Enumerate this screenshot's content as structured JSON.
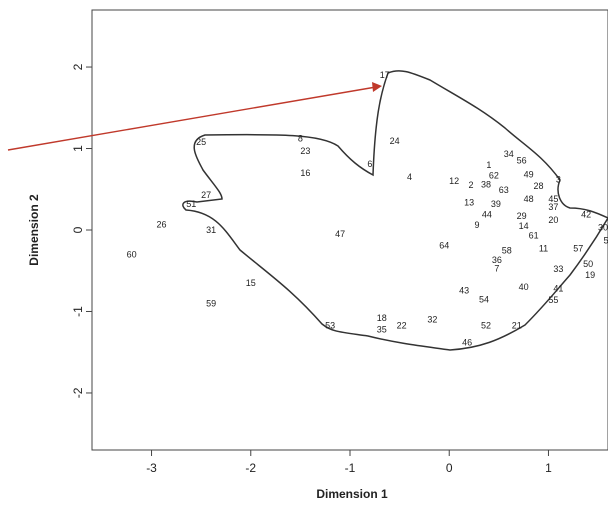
{
  "chart_data": {
    "type": "scatter",
    "xlabel": "Dimension 1",
    "ylabel": "Dimension 2",
    "xlim": [
      -3.6,
      1.6
    ],
    "ylim": [
      -2.7,
      2.7
    ],
    "xticks": [
      -3,
      -2,
      -1,
      0,
      1
    ],
    "xtick_labels": [
      "-3",
      "-2",
      "-1",
      "0",
      "1"
    ],
    "yticks": [
      -2,
      -1,
      0,
      1,
      2
    ],
    "ytick_labels": [
      "-2",
      "-1",
      "0",
      "1",
      "2"
    ],
    "grid": false,
    "points": [
      {
        "label": "17",
        "x": -0.65,
        "y": 1.9
      },
      {
        "label": "8",
        "x": -1.5,
        "y": 1.12
      },
      {
        "label": "25",
        "x": -2.5,
        "y": 1.08
      },
      {
        "label": "23",
        "x": -1.45,
        "y": 0.97
      },
      {
        "label": "24",
        "x": -0.55,
        "y": 1.09
      },
      {
        "label": "16",
        "x": -1.45,
        "y": 0.7
      },
      {
        "label": "6",
        "x": -0.8,
        "y": 0.81
      },
      {
        "label": "4",
        "x": -0.4,
        "y": 0.65
      },
      {
        "label": "34",
        "x": 0.6,
        "y": 0.93
      },
      {
        "label": "56",
        "x": 0.73,
        "y": 0.85
      },
      {
        "label": "1",
        "x": 0.4,
        "y": 0.8
      },
      {
        "label": "62",
        "x": 0.45,
        "y": 0.67
      },
      {
        "label": "49",
        "x": 0.8,
        "y": 0.68
      },
      {
        "label": "3",
        "x": 1.1,
        "y": 0.62
      },
      {
        "label": "12",
        "x": 0.05,
        "y": 0.6
      },
      {
        "label": "2",
        "x": 0.22,
        "y": 0.55
      },
      {
        "label": "38",
        "x": 0.37,
        "y": 0.56
      },
      {
        "label": "63",
        "x": 0.55,
        "y": 0.49
      },
      {
        "label": "28",
        "x": 0.9,
        "y": 0.54
      },
      {
        "label": "13",
        "x": 0.2,
        "y": 0.34
      },
      {
        "label": "39",
        "x": 0.47,
        "y": 0.32
      },
      {
        "label": "48",
        "x": 0.8,
        "y": 0.38
      },
      {
        "label": "45",
        "x": 1.05,
        "y": 0.38
      },
      {
        "label": "37",
        "x": 1.05,
        "y": 0.28
      },
      {
        "label": "44",
        "x": 0.38,
        "y": 0.19
      },
      {
        "label": "29",
        "x": 0.73,
        "y": 0.17
      },
      {
        "label": "20",
        "x": 1.05,
        "y": 0.12
      },
      {
        "label": "42",
        "x": 1.38,
        "y": 0.19
      },
      {
        "label": "9",
        "x": 0.28,
        "y": 0.06
      },
      {
        "label": "14",
        "x": 0.75,
        "y": 0.05
      },
      {
        "label": "30",
        "x": 1.55,
        "y": 0.03
      },
      {
        "label": "61",
        "x": 0.85,
        "y": -0.07
      },
      {
        "label": "27",
        "x": -2.45,
        "y": 0.43
      },
      {
        "label": "51",
        "x": -2.6,
        "y": 0.32
      },
      {
        "label": "26",
        "x": -2.9,
        "y": 0.07
      },
      {
        "label": "31",
        "x": -2.4,
        "y": 0.0
      },
      {
        "label": "47",
        "x": -1.1,
        "y": -0.05
      },
      {
        "label": "64",
        "x": -0.05,
        "y": -0.19
      },
      {
        "label": "5",
        "x": 1.58,
        "y": -0.13
      },
      {
        "label": "60",
        "x": -3.2,
        "y": -0.3
      },
      {
        "label": "58",
        "x": 0.58,
        "y": -0.25
      },
      {
        "label": "11",
        "x": 0.95,
        "y": -0.23
      },
      {
        "label": "57",
        "x": 1.3,
        "y": -0.23
      },
      {
        "label": "36",
        "x": 0.48,
        "y": -0.37
      },
      {
        "label": "7",
        "x": 0.48,
        "y": -0.47
      },
      {
        "label": "50",
        "x": 1.4,
        "y": -0.42
      },
      {
        "label": "33",
        "x": 1.1,
        "y": -0.48
      },
      {
        "label": "19",
        "x": 1.42,
        "y": -0.55
      },
      {
        "label": "15",
        "x": -2.0,
        "y": -0.65
      },
      {
        "label": "43",
        "x": 0.15,
        "y": -0.74
      },
      {
        "label": "40",
        "x": 0.75,
        "y": -0.7
      },
      {
        "label": "41",
        "x": 1.1,
        "y": -0.72
      },
      {
        "label": "54",
        "x": 0.35,
        "y": -0.85
      },
      {
        "label": "55",
        "x": 1.05,
        "y": -0.86
      },
      {
        "label": "59",
        "x": -2.4,
        "y": -0.9
      },
      {
        "label": "18",
        "x": -0.68,
        "y": -1.08
      },
      {
        "label": "32",
        "x": -0.17,
        "y": -1.1
      },
      {
        "label": "53",
        "x": -1.2,
        "y": -1.17
      },
      {
        "label": "22",
        "x": -0.48,
        "y": -1.17
      },
      {
        "label": "52",
        "x": 0.37,
        "y": -1.17
      },
      {
        "label": "21",
        "x": 0.68,
        "y": -1.17
      },
      {
        "label": "35",
        "x": -0.68,
        "y": -1.22
      },
      {
        "label": "46",
        "x": 0.18,
        "y": -1.38
      }
    ],
    "annotations": {
      "boundary_color": "#333333",
      "arrow_color": "#c0392b"
    }
  }
}
